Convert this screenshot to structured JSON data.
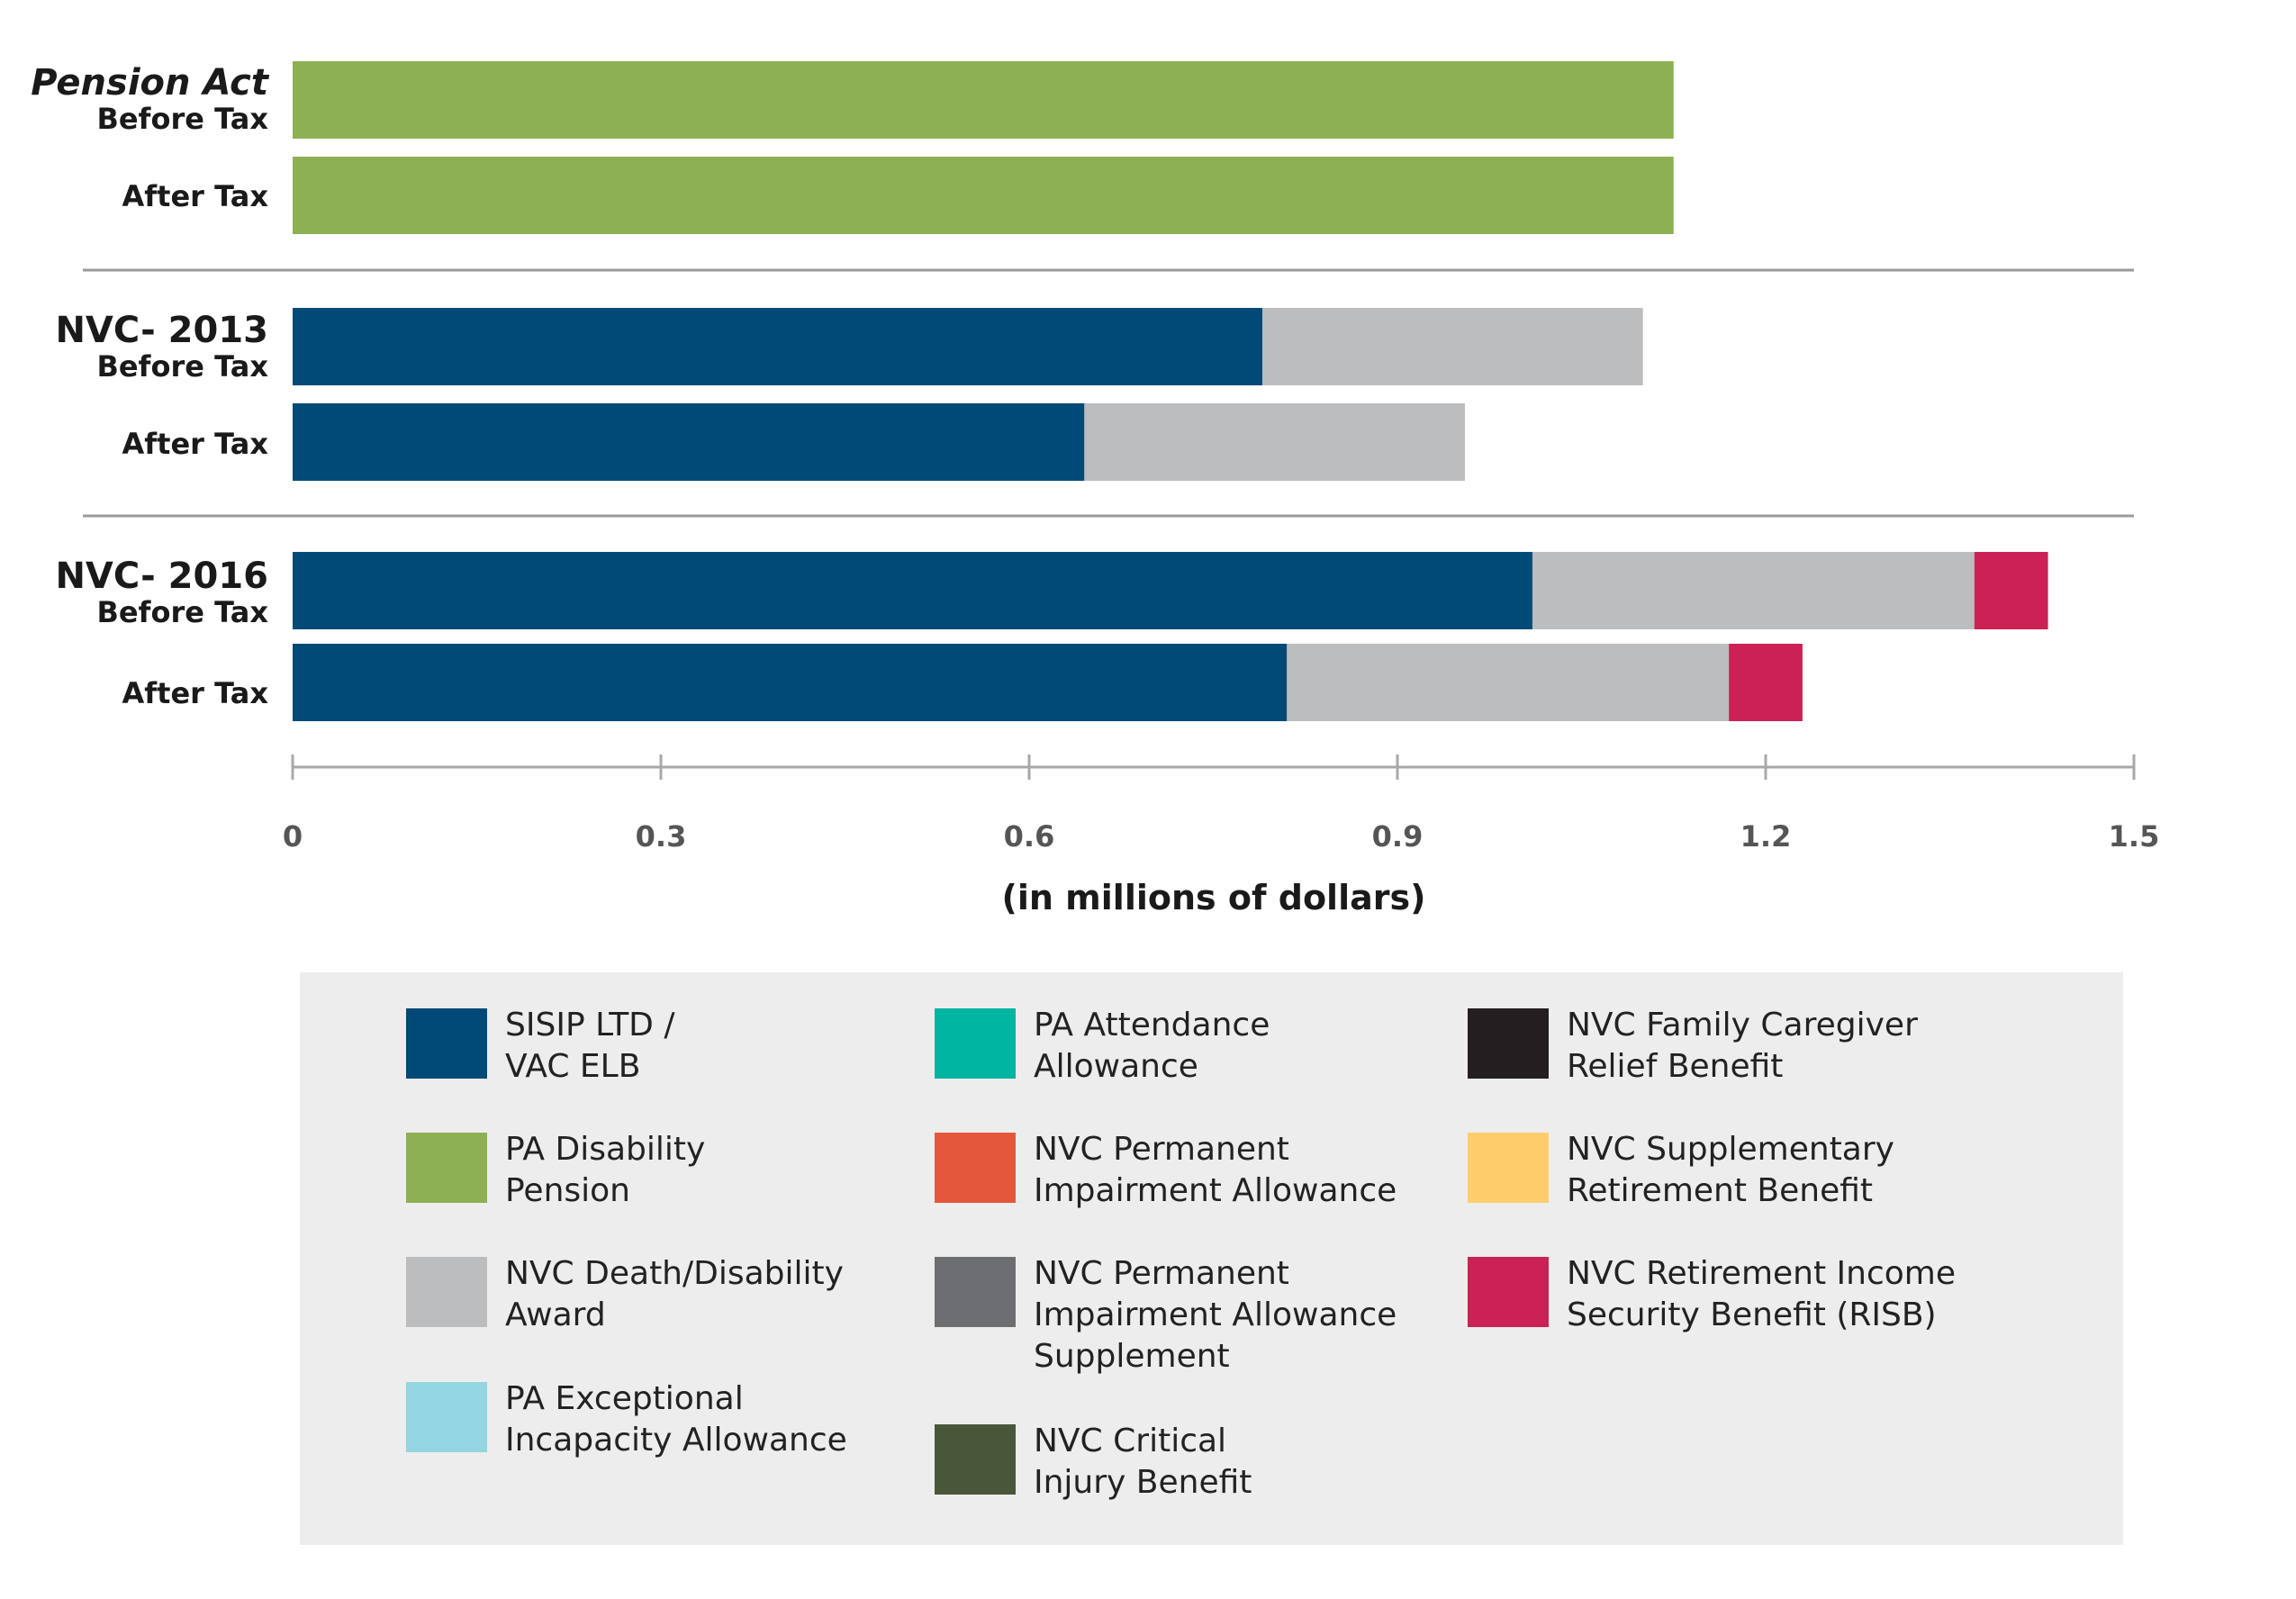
{
  "chart_data": {
    "type": "bar",
    "orientation": "horizontal",
    "stacked": true,
    "xlabel": "(in millions of dollars)",
    "xlim": [
      0,
      1.5
    ],
    "xticks": [
      "0",
      "0.3",
      "0.6",
      "0.9",
      "1.2",
      "1.5"
    ],
    "groups": [
      {
        "name": "Pension Act",
        "name_style": "italic",
        "bars": [
          {
            "label": "Before Tax",
            "segments": [
              {
                "series": "PA Disability Pension",
                "value": 1.125
              }
            ]
          },
          {
            "label": "After Tax",
            "segments": [
              {
                "series": "PA Disability Pension",
                "value": 1.125
              }
            ]
          }
        ]
      },
      {
        "name": "NVC- 2013",
        "name_style": "normal",
        "bars": [
          {
            "label": "Before Tax",
            "segments": [
              {
                "series": "SISIP LTD / VAC ELB",
                "value": 0.79
              },
              {
                "series": "NVC Death/Disability Award",
                "value": 0.31
              }
            ]
          },
          {
            "label": "After Tax",
            "segments": [
              {
                "series": "SISIP LTD / VAC ELB",
                "value": 0.645
              },
              {
                "series": "NVC Death/Disability Award",
                "value": 0.31
              }
            ]
          }
        ]
      },
      {
        "name": "NVC- 2016",
        "name_style": "normal",
        "bars": [
          {
            "label": "Before Tax",
            "segments": [
              {
                "series": "SISIP LTD / VAC ELB",
                "value": 1.01
              },
              {
                "series": "NVC Death/Disability Award",
                "value": 0.36
              },
              {
                "series": "NVC Retirement Income Security Benefit (RISB)",
                "value": 0.06
              }
            ]
          },
          {
            "label": "After Tax",
            "segments": [
              {
                "series": "SISIP LTD / VAC ELB",
                "value": 0.81
              },
              {
                "series": "NVC Death/Disability Award",
                "value": 0.36
              },
              {
                "series": "NVC Retirement Income Security Benefit (RISB)",
                "value": 0.06
              }
            ]
          }
        ]
      }
    ],
    "legend": [
      {
        "label": "SISIP LTD /\nVAC ELB",
        "color": "#014a77"
      },
      {
        "label": "PA Disability\nPension",
        "color": "#8db053"
      },
      {
        "label": "NVC Death/Disability\nAward",
        "color": "#bcbdbf"
      },
      {
        "label": "PA Exceptional\nIncapacity Allowance",
        "color": "#93d5e0"
      },
      {
        "label": "PA Attendance\nAllowance",
        "color": "#00b5a2"
      },
      {
        "label": "NVC Permanent\nImpairment Allowance",
        "color": "#e4573a"
      },
      {
        "label": "NVC Permanent\nImpairment Allowance\nSupplement",
        "color": "#6c6e71"
      },
      {
        "label": "NVC Critical\nInjury Benefit",
        "color": "#48573a"
      },
      {
        "label": "NVC Family Caregiver\nRelief Benefit",
        "color": "#231f20"
      },
      {
        "label": "NVC Supplementary\nRetirement Benefit",
        "color": "#fdcd6b"
      },
      {
        "label": "NVC Retirement Income\nSecurity Benefit (RISB)",
        "color": "#cc2155"
      }
    ],
    "series_colors": {
      "SISIP LTD / VAC ELB": "#014a77",
      "PA Disability Pension": "#8db053",
      "NVC Death/Disability Award": "#bcbdbf",
      "NVC Retirement Income Security Benefit (RISB)": "#cc2155"
    }
  }
}
